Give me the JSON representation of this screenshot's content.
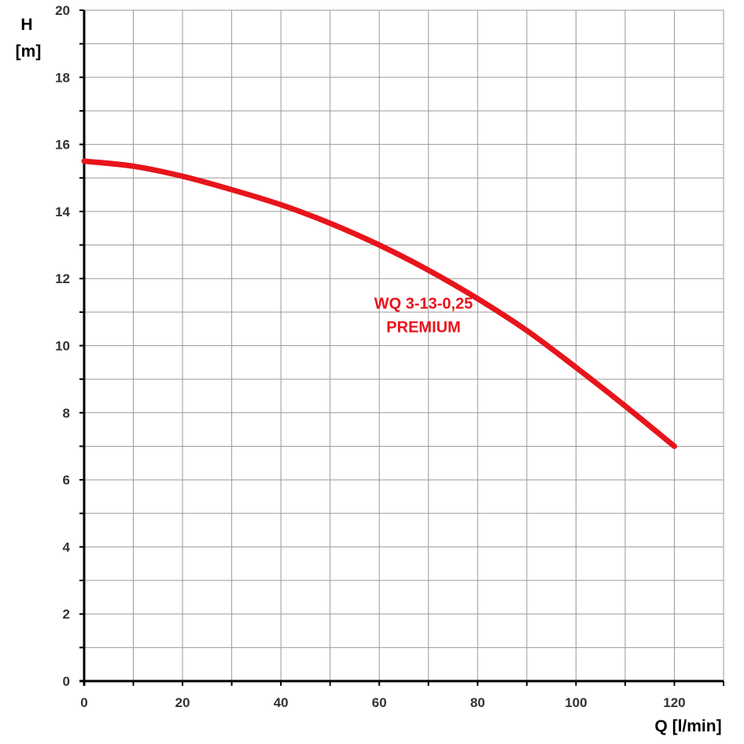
{
  "chart_data": {
    "type": "line",
    "title": "",
    "xlabel": "Q [l/min]",
    "ylabel": [
      "H",
      "[m]"
    ],
    "xlim": [
      0,
      130
    ],
    "ylim": [
      0,
      20
    ],
    "x_ticks": [
      0,
      20,
      40,
      60,
      80,
      100,
      120
    ],
    "y_ticks": [
      0,
      2,
      4,
      6,
      8,
      10,
      12,
      14,
      16,
      18,
      20
    ],
    "x_minor_step": 10,
    "y_minor_step": 1,
    "grid": true,
    "series": [
      {
        "color": "#e8141b",
        "x": [
          0,
          10,
          20,
          30,
          40,
          50,
          60,
          70,
          80,
          90,
          100,
          110,
          120
        ],
        "y": [
          15.5,
          15.35,
          15.05,
          14.65,
          14.2,
          13.65,
          13.0,
          12.25,
          11.4,
          10.45,
          9.35,
          8.2,
          7.0
        ]
      }
    ],
    "annotations": [
      {
        "text": "WQ 3-13-0,25",
        "x": 69,
        "y": 11.1
      },
      {
        "text": "PREMIUM",
        "x": 69,
        "y": 10.4
      }
    ]
  }
}
